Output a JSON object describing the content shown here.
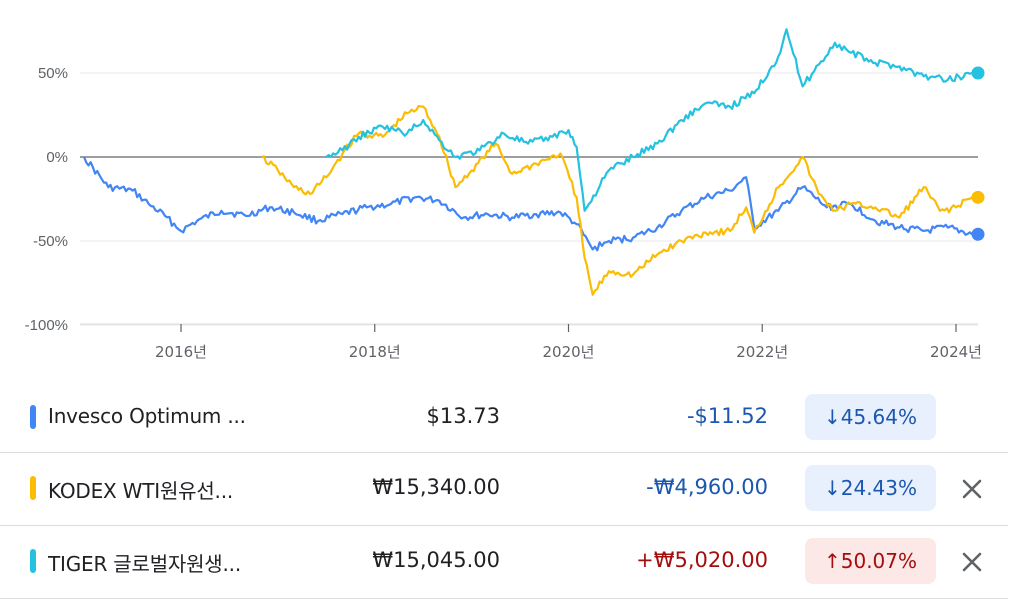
{
  "chart_data": {
    "type": "line",
    "x_ticks": [
      "2016년",
      "2018년",
      "2020년",
      "2022년",
      "2024년"
    ],
    "y_ticks": [
      "50%",
      "0%",
      "-50%",
      "-100%"
    ],
    "ylim": [
      -100,
      80
    ],
    "y_unit": "%",
    "zero_line": true,
    "series": [
      {
        "name": "Invesco Optimum ...",
        "color": "#4285f4",
        "points": [
          [
            "2015-01",
            0
          ],
          [
            "2015-04",
            -18
          ],
          [
            "2015-07",
            -20
          ],
          [
            "2015-09",
            -28
          ],
          [
            "2015-11",
            -35
          ],
          [
            "2016-01",
            -44
          ],
          [
            "2016-03",
            -38
          ],
          [
            "2016-06",
            -32
          ],
          [
            "2016-09",
            -35
          ],
          [
            "2016-12",
            -30
          ],
          [
            "2017-03",
            -33
          ],
          [
            "2017-06",
            -38
          ],
          [
            "2017-09",
            -34
          ],
          [
            "2017-12",
            -30
          ],
          [
            "2018-03",
            -28
          ],
          [
            "2018-06",
            -24
          ],
          [
            "2018-09",
            -26
          ],
          [
            "2018-12",
            -36
          ],
          [
            "2019-03",
            -34
          ],
          [
            "2019-06",
            -36
          ],
          [
            "2019-09",
            -34
          ],
          [
            "2019-12",
            -33
          ],
          [
            "2020-02",
            -40
          ],
          [
            "2020-04",
            -55
          ],
          [
            "2020-06",
            -50
          ],
          [
            "2020-09",
            -48
          ],
          [
            "2020-12",
            -42
          ],
          [
            "2021-03",
            -32
          ],
          [
            "2021-06",
            -24
          ],
          [
            "2021-09",
            -20
          ],
          [
            "2021-11",
            -12
          ],
          [
            "2021-12",
            -42
          ],
          [
            "2022-03",
            -32
          ],
          [
            "2022-06",
            -18
          ],
          [
            "2022-09",
            -30
          ],
          [
            "2022-12",
            -28
          ],
          [
            "2023-03",
            -38
          ],
          [
            "2023-06",
            -42
          ],
          [
            "2023-09",
            -44
          ],
          [
            "2023-12",
            -42
          ],
          [
            "2024-03",
            -46
          ]
        ]
      },
      {
        "name": "KODEX WTI원유선...",
        "color": "#fbbc04",
        "points": [
          [
            "2016-11",
            0
          ],
          [
            "2017-01",
            -8
          ],
          [
            "2017-03",
            -18
          ],
          [
            "2017-05",
            -22
          ],
          [
            "2017-07",
            -12
          ],
          [
            "2017-09",
            2
          ],
          [
            "2017-11",
            14
          ],
          [
            "2018-02",
            12
          ],
          [
            "2018-05",
            26
          ],
          [
            "2018-07",
            30
          ],
          [
            "2018-09",
            12
          ],
          [
            "2018-11",
            -18
          ],
          [
            "2019-01",
            -8
          ],
          [
            "2019-04",
            8
          ],
          [
            "2019-06",
            -10
          ],
          [
            "2019-09",
            -4
          ],
          [
            "2019-12",
            2
          ],
          [
            "2020-02",
            -24
          ],
          [
            "2020-03",
            -60
          ],
          [
            "2020-04",
            -82
          ],
          [
            "2020-06",
            -68
          ],
          [
            "2020-09",
            -70
          ],
          [
            "2020-12",
            -58
          ],
          [
            "2021-03",
            -50
          ],
          [
            "2021-06",
            -45
          ],
          [
            "2021-09",
            -44
          ],
          [
            "2021-11",
            -30
          ],
          [
            "2021-12",
            -45
          ],
          [
            "2022-03",
            -18
          ],
          [
            "2022-06",
            0
          ],
          [
            "2022-08",
            -22
          ],
          [
            "2022-10",
            -32
          ],
          [
            "2022-12",
            -28
          ],
          [
            "2023-03",
            -30
          ],
          [
            "2023-06",
            -36
          ],
          [
            "2023-09",
            -18
          ],
          [
            "2023-11",
            -32
          ],
          [
            "2024-01",
            -30
          ],
          [
            "2024-03",
            -24
          ]
        ]
      },
      {
        "name": "TIGER 글로벌자원생...",
        "color": "#24c1e0",
        "points": [
          [
            "2017-07",
            0
          ],
          [
            "2017-09",
            4
          ],
          [
            "2017-11",
            12
          ],
          [
            "2018-02",
            18
          ],
          [
            "2018-05",
            14
          ],
          [
            "2018-07",
            22
          ],
          [
            "2018-09",
            10
          ],
          [
            "2018-11",
            0
          ],
          [
            "2019-02",
            4
          ],
          [
            "2019-05",
            14
          ],
          [
            "2019-08",
            8
          ],
          [
            "2019-11",
            12
          ],
          [
            "2020-01",
            16
          ],
          [
            "2020-02",
            6
          ],
          [
            "2020-03",
            -32
          ],
          [
            "2020-06",
            -8
          ],
          [
            "2020-09",
            0
          ],
          [
            "2020-12",
            8
          ],
          [
            "2021-03",
            22
          ],
          [
            "2021-06",
            32
          ],
          [
            "2021-09",
            30
          ],
          [
            "2021-12",
            38
          ],
          [
            "2022-03",
            60
          ],
          [
            "2022-04",
            76
          ],
          [
            "2022-06",
            42
          ],
          [
            "2022-08",
            55
          ],
          [
            "2022-10",
            68
          ],
          [
            "2022-12",
            62
          ],
          [
            "2023-03",
            56
          ],
          [
            "2023-06",
            54
          ],
          [
            "2023-09",
            48
          ],
          [
            "2023-12",
            46
          ],
          [
            "2024-03",
            50
          ]
        ]
      }
    ]
  },
  "rows": [
    {
      "name": "Invesco Optimum ...",
      "price": "$13.73",
      "change": "-$11.52",
      "percent": "45.64%",
      "direction": "down",
      "color": "#4285f4",
      "arrow": "↓"
    },
    {
      "name": "KODEX WTI원유선...",
      "price": "₩15,340.00",
      "change": "-₩4,960.00",
      "percent": "24.43%",
      "direction": "down",
      "color": "#fbbc04",
      "arrow": "↓"
    },
    {
      "name": "TIGER 글로벌자원생...",
      "price": "₩15,045.00",
      "change": "+₩5,020.00",
      "percent": "50.07%",
      "direction": "up",
      "color": "#24c1e0",
      "arrow": "↑"
    }
  ],
  "icons": {
    "remove": "close-icon",
    "down": "arrow-down-icon",
    "up": "arrow-up-icon"
  }
}
